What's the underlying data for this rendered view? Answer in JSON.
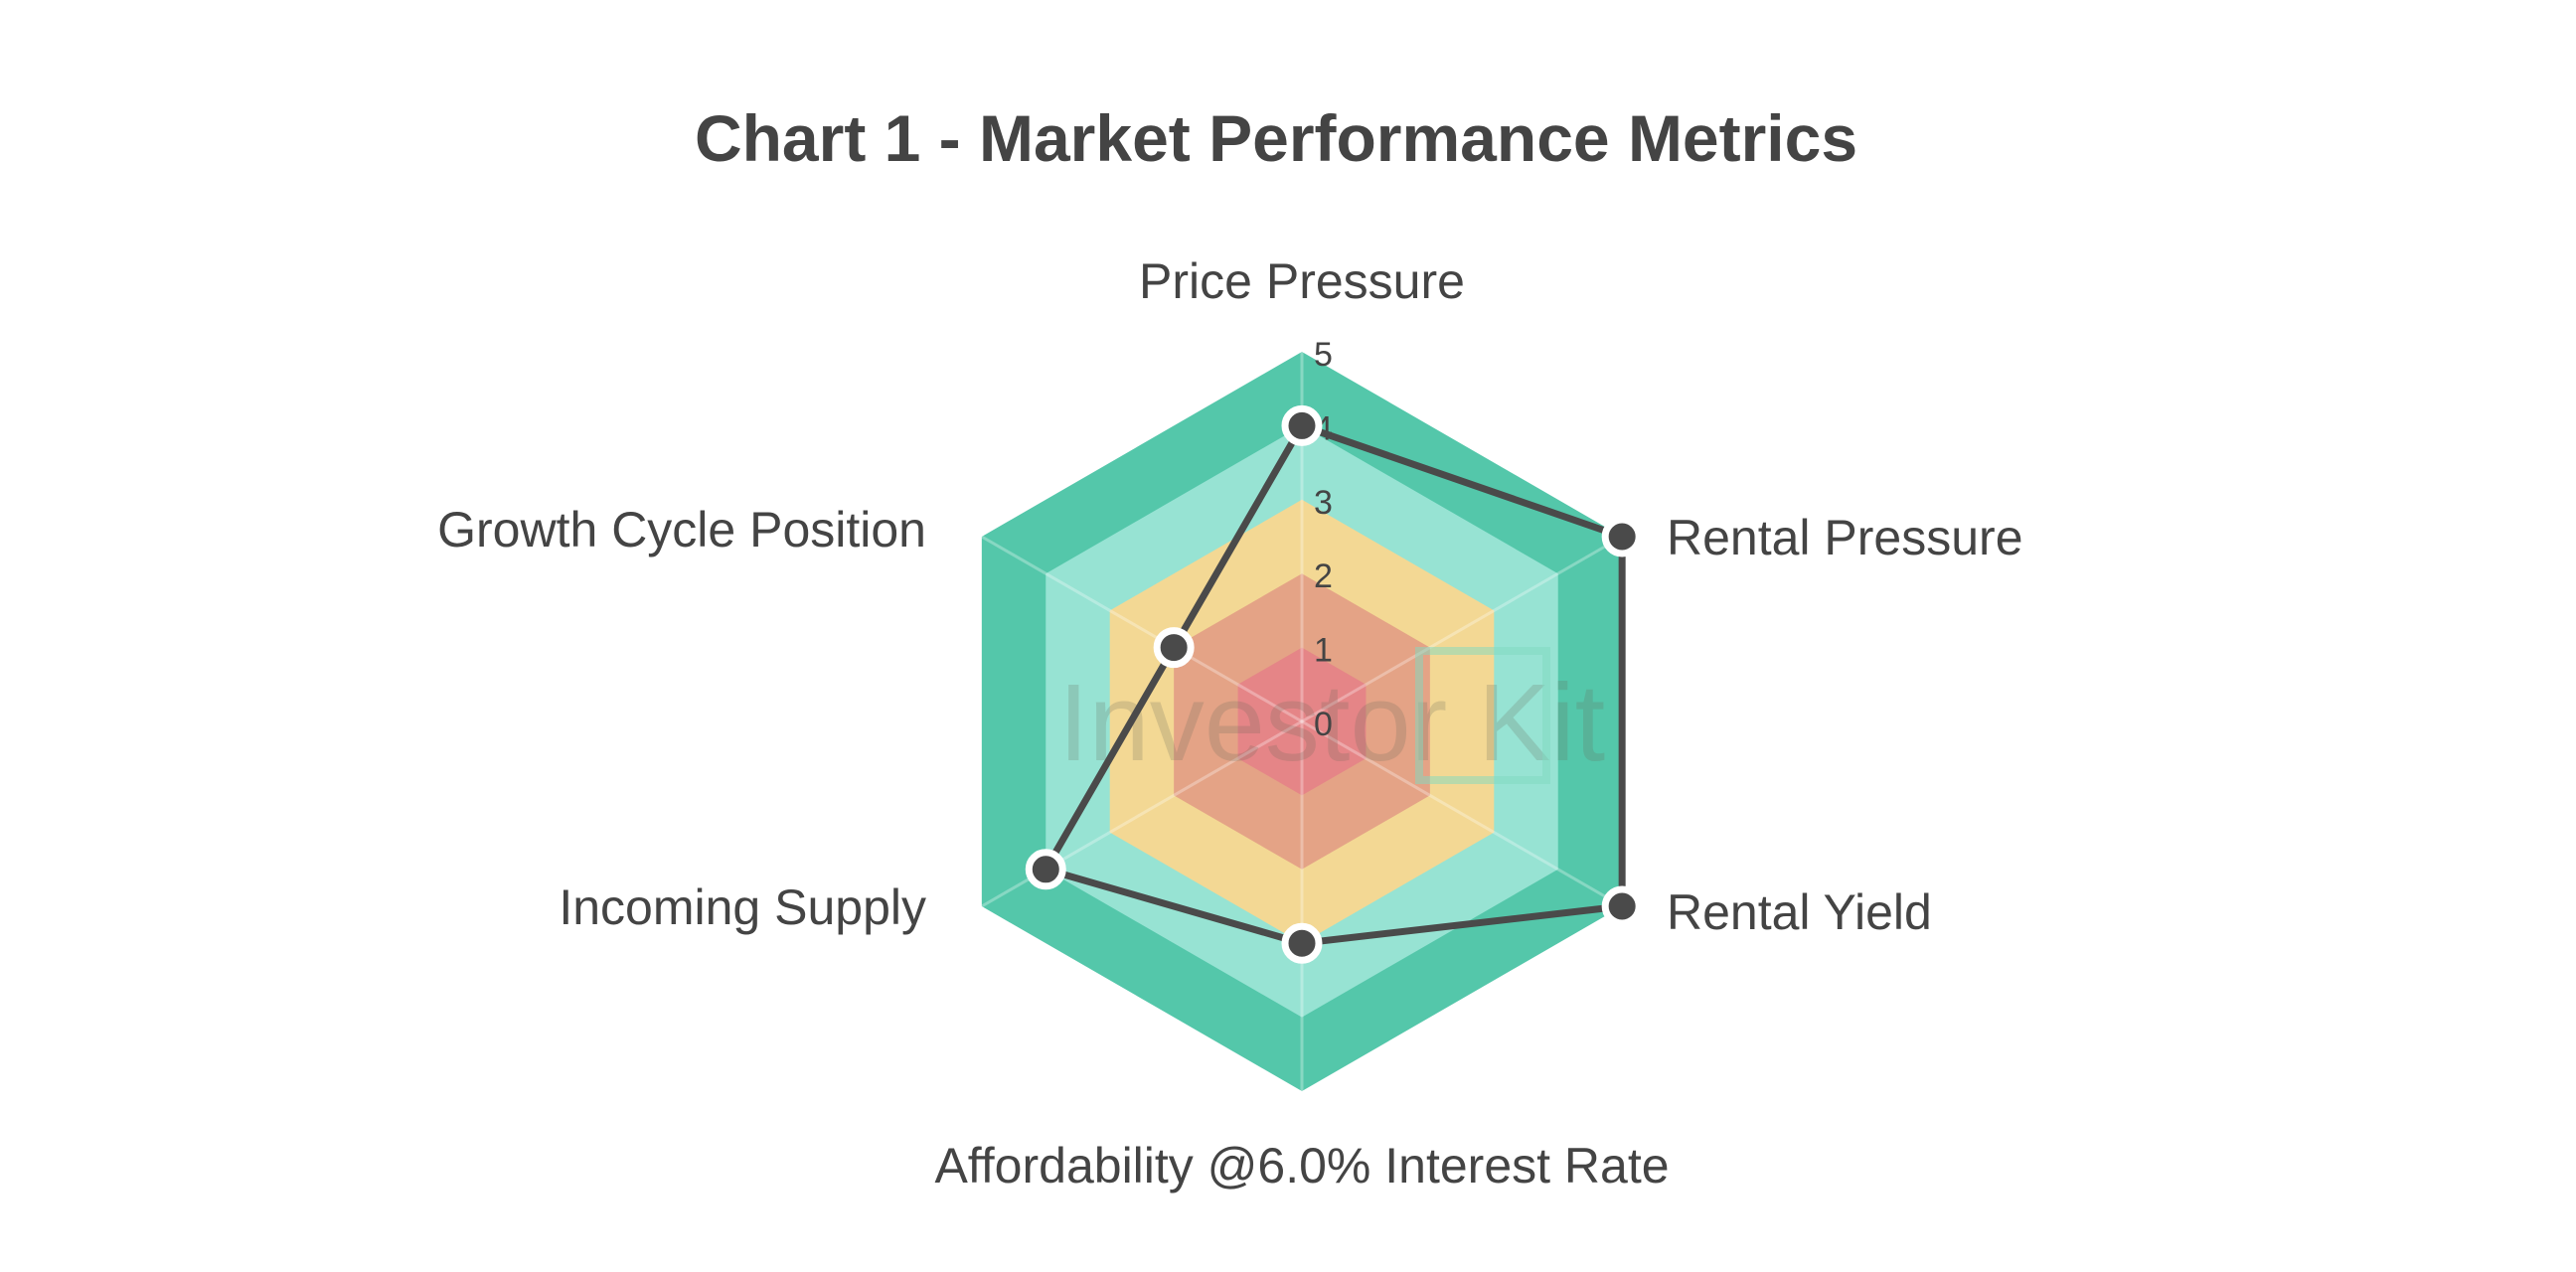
{
  "chart_data": {
    "type": "radar",
    "title": "Chart 1 - Market Performance Metrics",
    "categories": [
      "Price Pressure",
      "Rental Pressure",
      "Rental Yield",
      "Affordability @6.0% Interest Rate",
      "Incoming Supply",
      "Growth Cycle Position"
    ],
    "values": [
      4,
      5,
      5,
      3,
      4,
      2
    ],
    "range": [
      0,
      5
    ],
    "ticks": [
      "0",
      "1",
      "2",
      "3",
      "4",
      "5"
    ],
    "band_colors": [
      "#e58587",
      "#e4a386",
      "#f3d894",
      "#97e3d3",
      "#54c7aa"
    ],
    "line_color": "#4a4a4a",
    "watermark": "Investor Kit"
  }
}
